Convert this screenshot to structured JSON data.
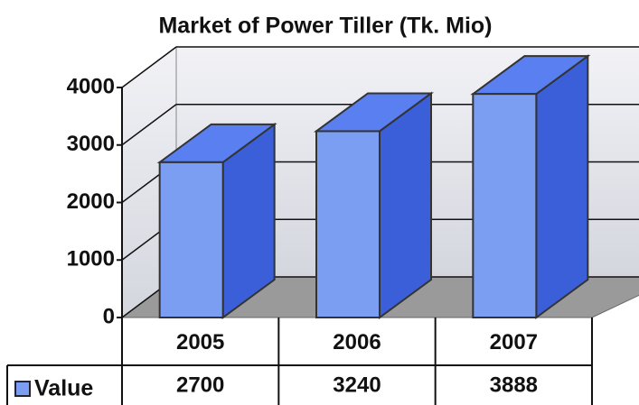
{
  "chart_data": {
    "type": "bar",
    "title": "Market of Power Tiller (Tk. Mio)",
    "categories": [
      "2005",
      "2006",
      "2007"
    ],
    "series": [
      {
        "name": "Value",
        "color": "#7b9df2",
        "values": [
          2700,
          3240,
          3888
        ]
      }
    ],
    "ylim": [
      0,
      4000
    ],
    "yticks": [
      0,
      1000,
      2000,
      3000,
      4000
    ],
    "grid": true
  }
}
